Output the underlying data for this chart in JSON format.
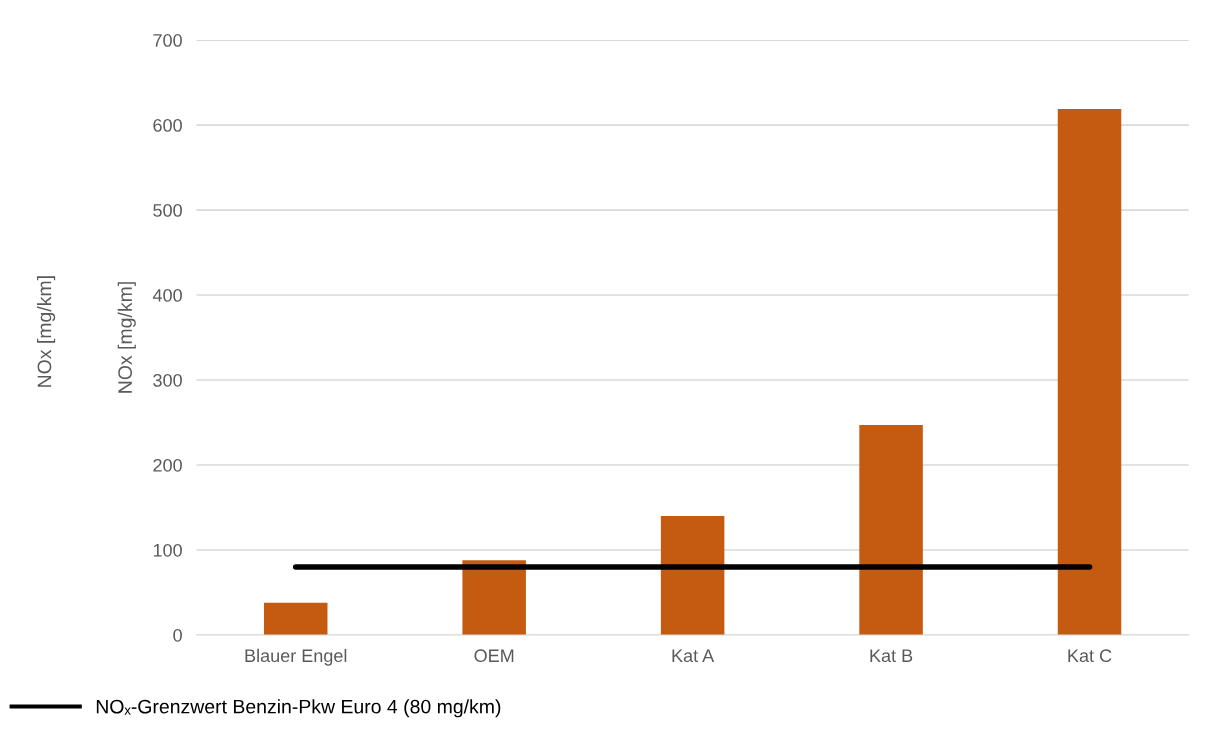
{
  "chart_data": {
    "type": "bar",
    "ylabel": "NOx [mg/km]",
    "annotations": [
      "NOx [mg/km]"
    ],
    "categories": [
      "Blauer Engel",
      "OEM",
      "Kat A",
      "Kat B",
      "Kat C"
    ],
    "values": [
      38,
      88,
      140,
      247,
      619
    ],
    "color": "#c55a11",
    "ylim": [
      0,
      700
    ],
    "yticks": [
      0,
      100,
      200,
      300,
      400,
      500,
      600,
      700
    ],
    "grid": "y",
    "ref_lines": [
      {
        "axis": "y",
        "value": 80,
        "label": "NOₓ-Grenzwert Benzin-Pkw Euro 4 (80 mg/km)",
        "color": "#000000",
        "line_style": "solid"
      }
    ],
    "legend": "bottom left"
  }
}
